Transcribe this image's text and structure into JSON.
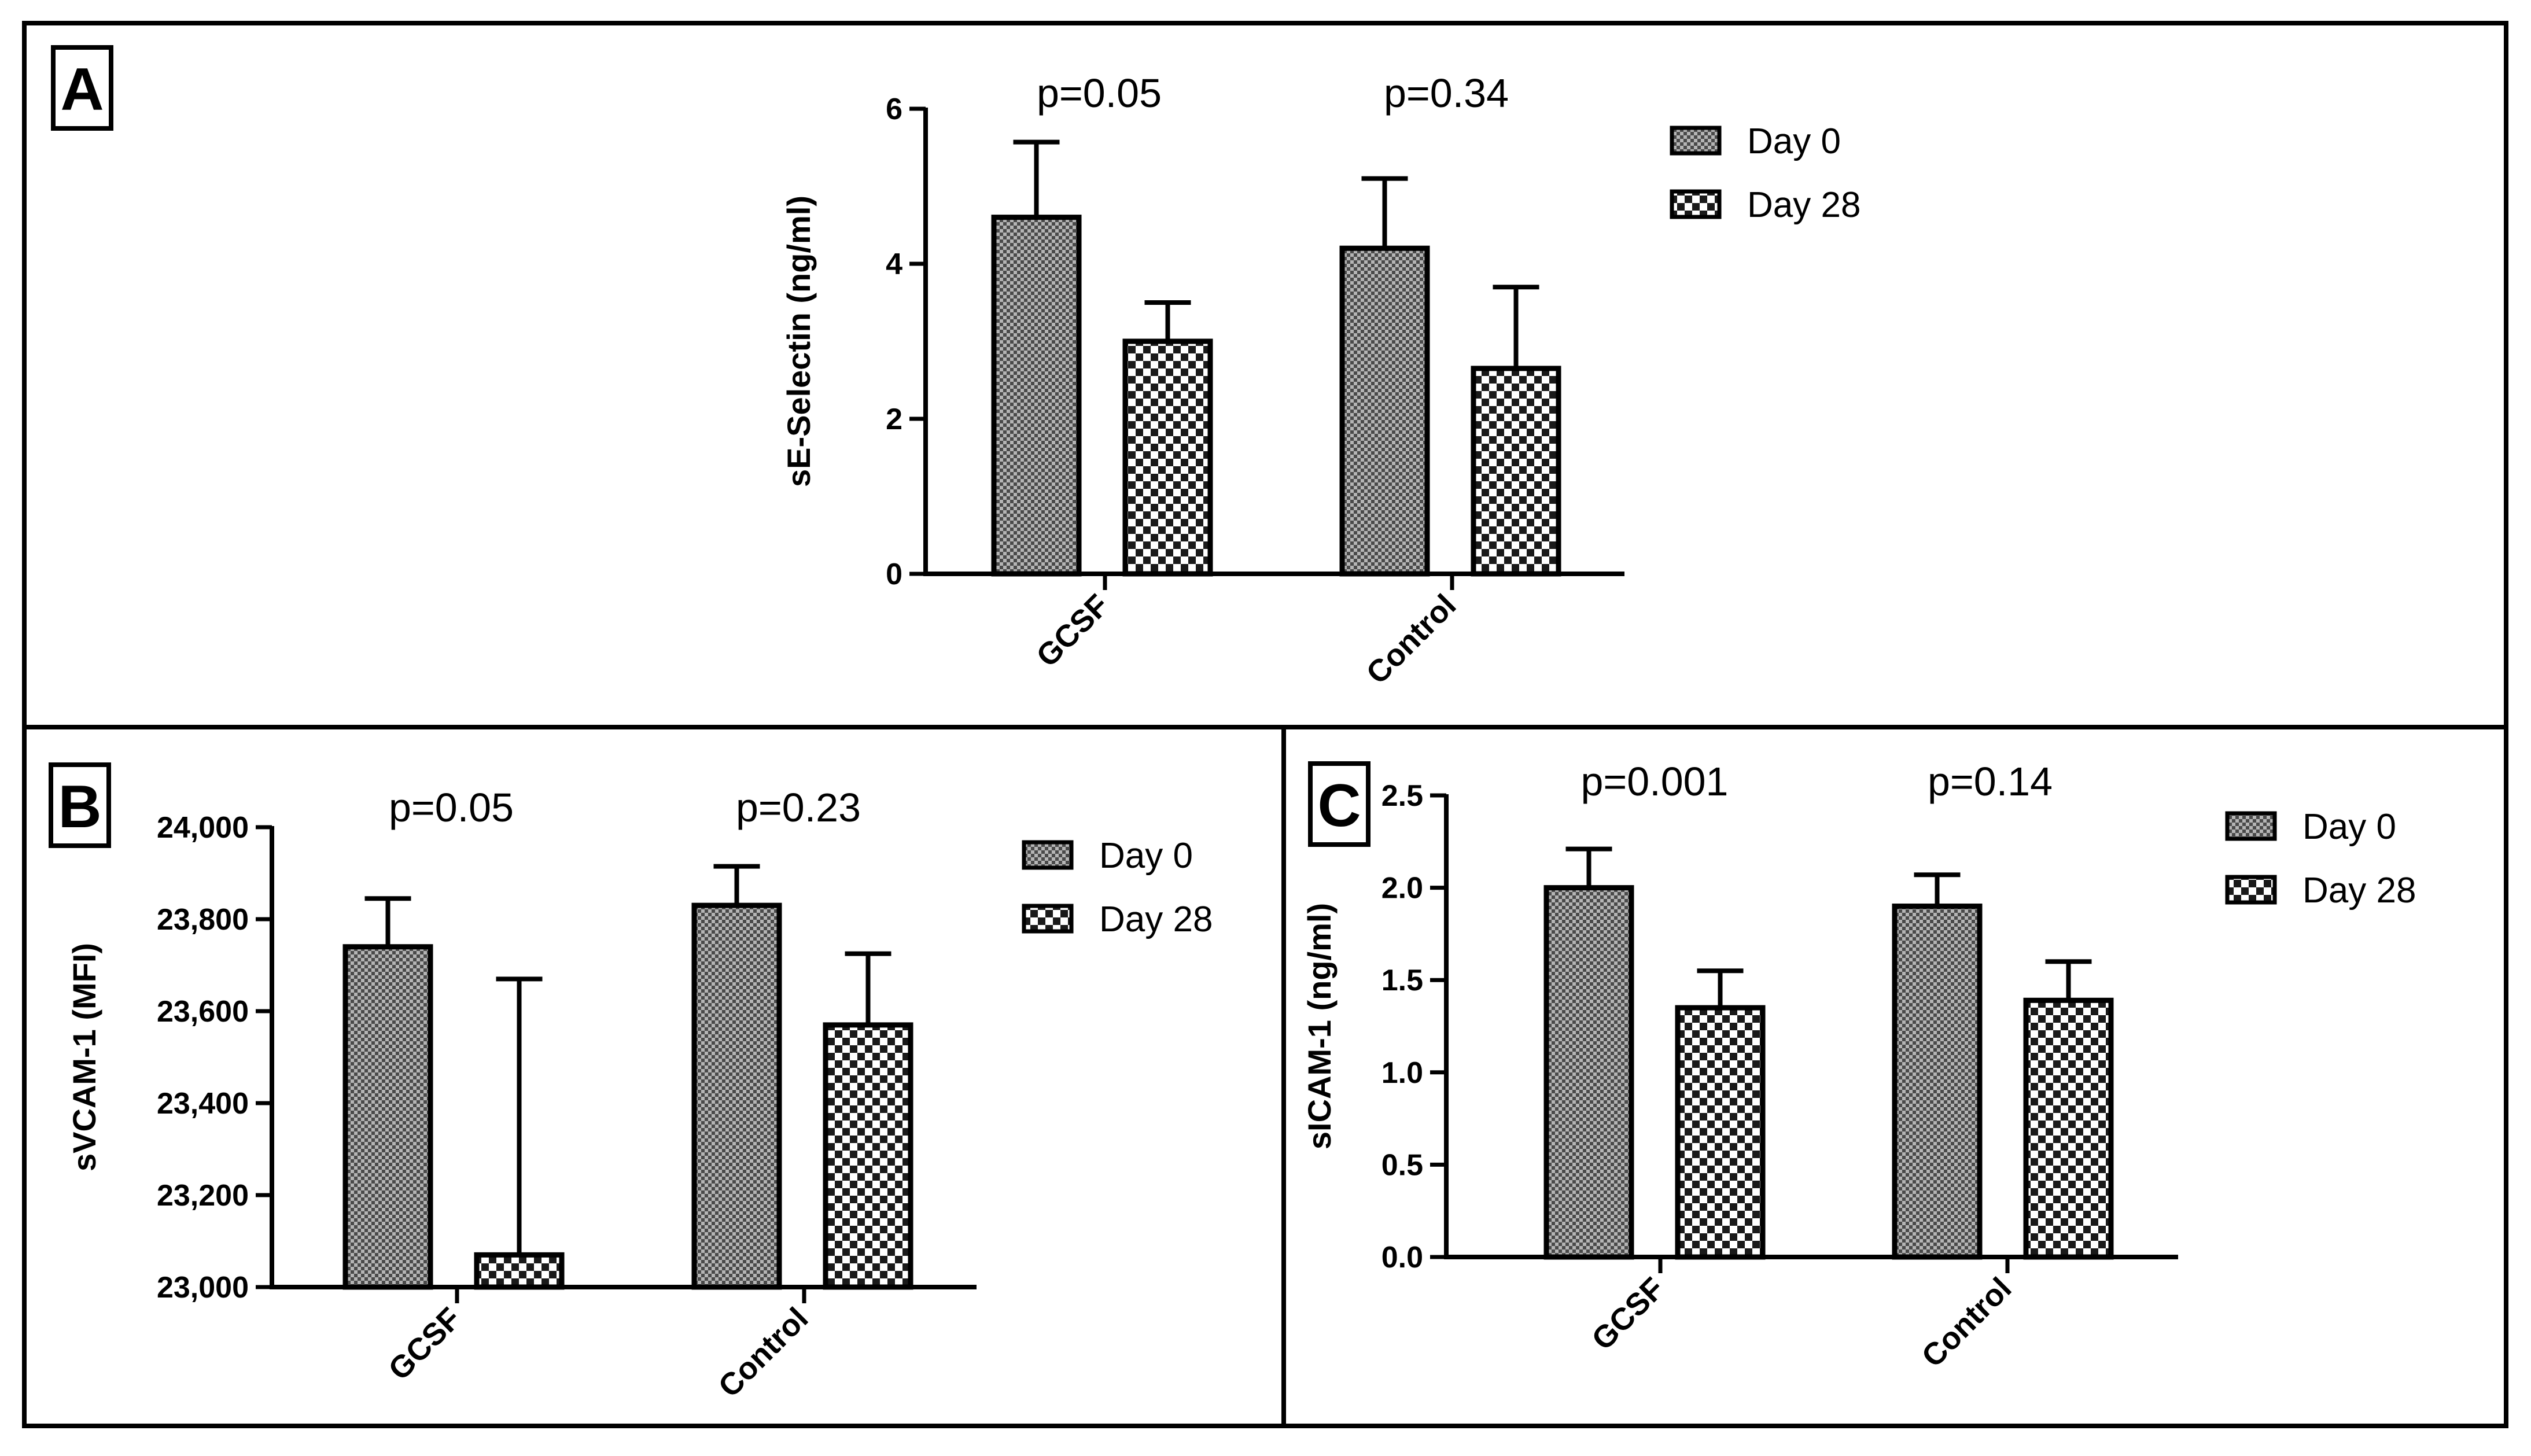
{
  "chart_data": [
    {
      "panel": "A",
      "type": "bar",
      "categories": [
        "GCSF",
        "Control"
      ],
      "series": [
        {
          "name": "Day 0",
          "values": [
            4.6,
            4.2
          ],
          "errors": [
            0.97,
            0.9
          ]
        },
        {
          "name": "Day 28",
          "values": [
            3.0,
            2.65
          ],
          "errors": [
            0.5,
            1.05
          ]
        }
      ],
      "ylabel": "sE-Selectin (ng/ml)",
      "ylim": [
        0,
        6
      ],
      "yticks": [
        "0",
        "2",
        "4",
        "6"
      ],
      "ytick_values": [
        0,
        2,
        4,
        6
      ],
      "pvalues": [
        "p=0.05",
        "p=0.34"
      ],
      "legend": [
        "Day 0",
        "Day 28"
      ]
    },
    {
      "panel": "B",
      "type": "bar",
      "categories": [
        "GCSF",
        "Control"
      ],
      "series": [
        {
          "name": "Day 0",
          "values": [
            23740,
            23830
          ],
          "errors": [
            105,
            85
          ]
        },
        {
          "name": "Day 28",
          "values": [
            23070,
            23570
          ],
          "errors": [
            600,
            155
          ]
        }
      ],
      "ylabel": "sVCAM-1 (MFI)",
      "ylim": [
        23000,
        24000
      ],
      "yticks": [
        "23,000",
        "23,200",
        "23,400",
        "23,600",
        "23,800",
        "24,000"
      ],
      "ytick_values": [
        23000,
        23200,
        23400,
        23600,
        23800,
        24000
      ],
      "pvalues": [
        "p=0.05",
        "p=0.23"
      ],
      "legend": [
        "Day 0",
        "Day 28"
      ]
    },
    {
      "panel": "C",
      "type": "bar",
      "categories": [
        "GCSF",
        "Control"
      ],
      "series": [
        {
          "name": "Day 0",
          "values": [
            2.0,
            1.9
          ],
          "errors": [
            0.21,
            0.17
          ]
        },
        {
          "name": "Day 28",
          "values": [
            1.35,
            1.39
          ],
          "errors": [
            0.2,
            0.21
          ]
        }
      ],
      "ylabel": "sICAM-1 (ng/ml)",
      "ylim": [
        0,
        2.5
      ],
      "yticks": [
        "0.0",
        "0.5",
        "1.0",
        "1.5",
        "2.0",
        "2.5"
      ],
      "ytick_values": [
        0,
        0.5,
        1.0,
        1.5,
        2.0,
        2.5
      ],
      "pvalues": [
        "p=0.001",
        "p=0.14"
      ],
      "legend": [
        "Day 0",
        "Day 28"
      ]
    }
  ]
}
